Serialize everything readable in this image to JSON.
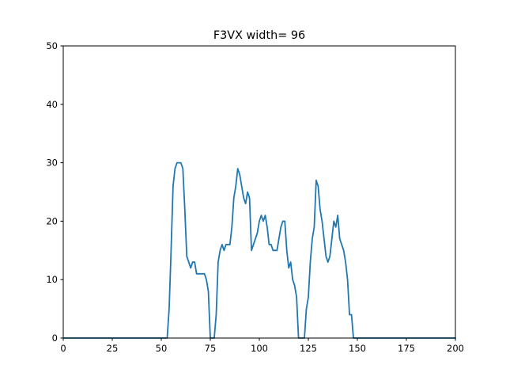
{
  "chart_data": {
    "type": "line",
    "title": "F3VX width= 96",
    "xlabel": "",
    "ylabel": "",
    "xlim": [
      0,
      200
    ],
    "ylim": [
      0,
      50
    ],
    "xticks": [
      0,
      25,
      50,
      75,
      100,
      125,
      150,
      175,
      200
    ],
    "yticks": [
      0,
      10,
      20,
      30,
      40,
      50
    ],
    "grid": false,
    "line_color": "#1f77b4",
    "series": [
      {
        "x": [
          0,
          53,
          54,
          55,
          56,
          57,
          58,
          59,
          60,
          61,
          62,
          63,
          64,
          65,
          66,
          67,
          68,
          69,
          70,
          71,
          72,
          73,
          74,
          75,
          76,
          77,
          78,
          79,
          80,
          81,
          82,
          83,
          84,
          85,
          86,
          87,
          88,
          89,
          90,
          91,
          92,
          93,
          94,
          95,
          96,
          97,
          98,
          99,
          100,
          101,
          102,
          103,
          104,
          105,
          106,
          107,
          108,
          109,
          110,
          111,
          112,
          113,
          114,
          115,
          116,
          117,
          118,
          119,
          120,
          121,
          122,
          123,
          124,
          125,
          126,
          127,
          128,
          129,
          130,
          131,
          132,
          133,
          134,
          135,
          136,
          137,
          138,
          139,
          140,
          141,
          142,
          143,
          144,
          145,
          146,
          147,
          148,
          149,
          150,
          200
        ],
        "values": [
          0,
          0,
          5,
          15,
          26,
          29,
          30,
          30,
          30,
          29,
          22,
          14,
          13,
          12,
          13,
          13,
          11,
          11,
          11,
          11,
          11,
          10,
          8,
          0,
          0,
          0,
          4,
          13,
          15,
          16,
          15,
          16,
          16,
          16,
          19,
          24,
          26,
          29,
          28,
          26,
          24,
          23,
          25,
          24,
          15,
          16,
          17,
          18,
          20,
          21,
          20,
          21,
          19,
          16,
          16,
          15,
          15,
          15,
          17,
          19,
          20,
          20,
          15,
          12,
          13,
          10,
          9,
          7,
          0,
          0,
          0,
          0,
          5,
          7,
          13,
          17,
          19,
          27,
          26,
          22,
          20,
          17,
          14,
          13,
          14,
          17,
          20,
          19,
          21,
          17,
          16,
          15,
          13,
          10,
          4,
          4,
          0,
          0,
          0,
          0
        ]
      }
    ]
  }
}
